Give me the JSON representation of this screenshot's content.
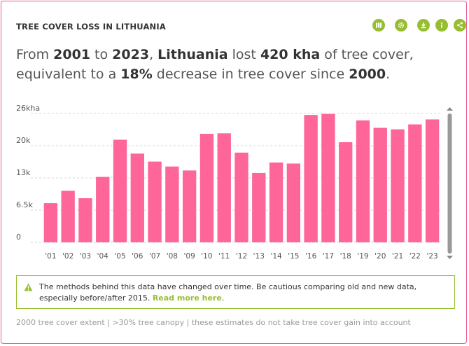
{
  "widget": {
    "title": "TREE COVER LOSS IN LITHUANIA",
    "toolbar": [
      {
        "name": "map-icon"
      },
      {
        "name": "settings-icon"
      },
      {
        "name": "download-icon"
      },
      {
        "name": "info-icon"
      },
      {
        "name": "share-icon"
      }
    ],
    "summary": {
      "p1": "From ",
      "start": "2001",
      "p2": " to ",
      "end": "2023",
      "p3": ", ",
      "country": "Lithuania",
      "p4": " lost ",
      "loss": "420 kha",
      "p5": " of tree cover, equivalent to a ",
      "percent": "18%",
      "p6": " decrease in tree cover since ",
      "base": "2000",
      "p7": "."
    },
    "notice": {
      "text": "The methods behind this data have changed over time. Be cautious comparing old and new data, especially before/after 2015. ",
      "link": "Read more here",
      "after": "."
    },
    "footnote": "2000 tree cover extent | >30% tree canopy | these estimates do not take tree cover gain into account",
    "colors": {
      "bar": "#fe6598",
      "accent": "#97be32",
      "border": "#e55a9a"
    }
  },
  "chart_data": {
    "type": "bar",
    "categories": [
      "'01",
      "'02",
      "'03",
      "'04",
      "'05",
      "'06",
      "'07",
      "'08",
      "'09",
      "'10",
      "'11",
      "'12",
      "'13",
      "'14",
      "'15",
      "'16",
      "'17",
      "'18",
      "'19",
      "'20",
      "'21",
      "'22",
      "'23"
    ],
    "values": [
      7.9,
      10.4,
      8.9,
      13.2,
      20.7,
      17.9,
      16.3,
      15.3,
      14.5,
      21.9,
      22.0,
      18.1,
      14.0,
      16.1,
      15.9,
      25.7,
      25.9,
      20.2,
      24.6,
      23.1,
      22.8,
      23.8,
      24.8
    ],
    "ytick_labels": [
      "0",
      "6.5k",
      "13k",
      "20k",
      "26kha"
    ],
    "ytick_values": [
      0,
      6.5,
      13,
      19.5,
      26
    ],
    "ylim": [
      0,
      26
    ],
    "grid": true
  }
}
